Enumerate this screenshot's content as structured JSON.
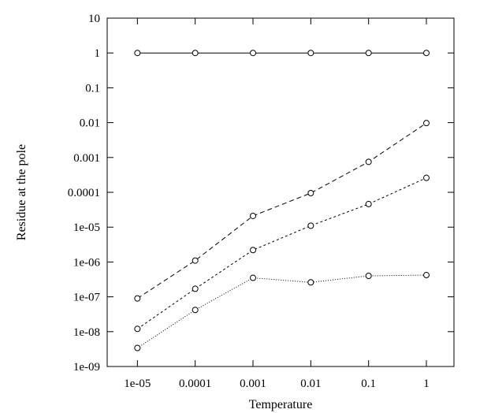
{
  "chart_data": {
    "type": "line",
    "xscale": "log",
    "yscale": "log",
    "xlabel": "Temperature",
    "ylabel": "Residue at the pole",
    "xlim": [
      3e-06,
      3
    ],
    "ylim": [
      1e-09,
      10
    ],
    "x": [
      1e-05,
      0.0001,
      0.001,
      0.01,
      0.1,
      1
    ],
    "x_tick_labels": [
      "1e-05",
      "0.0001",
      "0.001",
      "0.01",
      "0.1",
      "1"
    ],
    "y_ticks": [
      1e-09,
      1e-08,
      1e-07,
      1e-06,
      1e-05,
      0.0001,
      0.001,
      0.01,
      0.1,
      1,
      10
    ],
    "y_tick_labels": [
      "1e-09",
      "1e-08",
      "1e-07",
      "1e-06",
      "1e-05",
      "0.0001",
      "0.001",
      "0.01",
      "0.1",
      "1",
      "10"
    ],
    "grid": false,
    "series": [
      {
        "values": [
          1,
          1,
          1,
          1,
          1,
          1
        ],
        "line_style": "solid",
        "marker": "circle",
        "color": "#000000"
      },
      {
        "values": [
          9e-08,
          1.1e-06,
          2.1e-05,
          9.5e-05,
          0.00075,
          0.0097
        ],
        "line_style": "dashed",
        "marker": "circle",
        "color": "#000000"
      },
      {
        "values": [
          1.2e-08,
          1.7e-07,
          2.2e-06,
          1.1e-05,
          4.6e-05,
          0.00026
        ],
        "line_style": "short-dashed",
        "marker": "circle",
        "color": "#000000"
      },
      {
        "values": [
          3.4e-09,
          4.2e-08,
          3.5e-07,
          2.6e-07,
          4e-07,
          4.2e-07
        ],
        "line_style": "dotted",
        "marker": "circle",
        "color": "#000000"
      }
    ]
  }
}
